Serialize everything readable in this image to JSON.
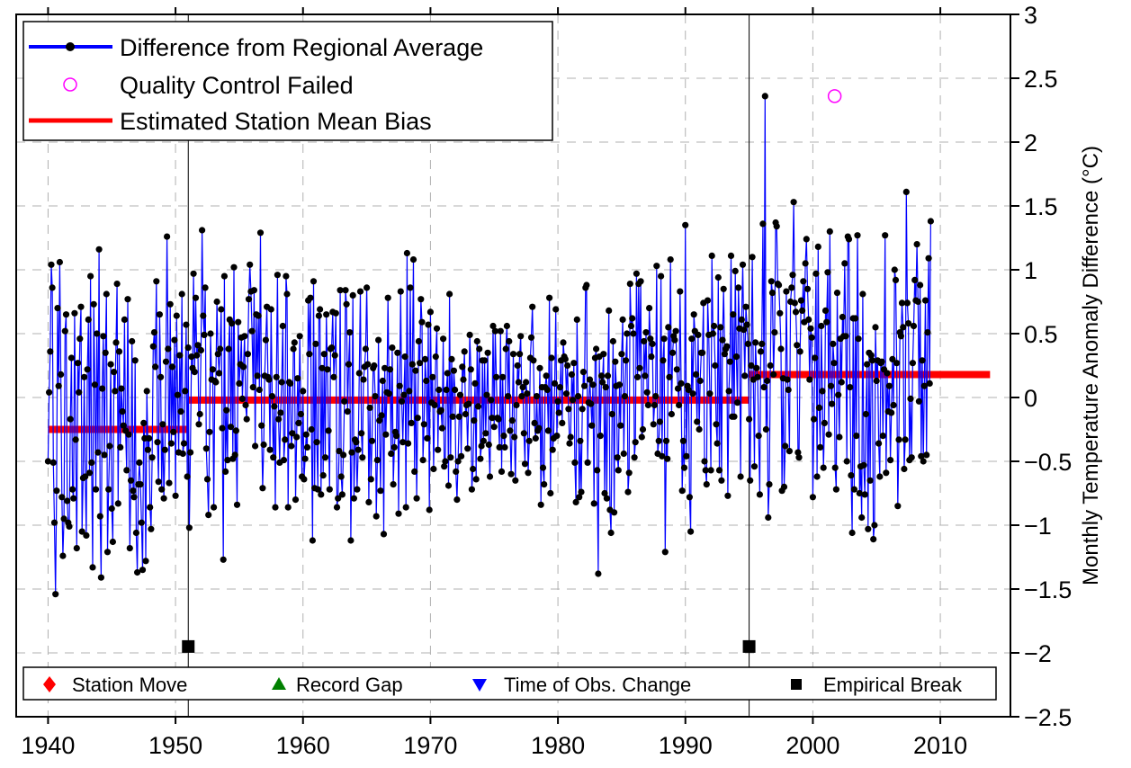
{
  "chart_data": {
    "type": "line",
    "title": "",
    "xlabel": "",
    "ylabel": "Monthly Temperature Anomaly Difference (°C)",
    "xlim": [
      1937.5,
      2015.5
    ],
    "ylim": [
      -2.5,
      3
    ],
    "x_ticks": [
      1940,
      1950,
      1960,
      1970,
      1980,
      1990,
      2000,
      2010
    ],
    "y_ticks": [
      -2.5,
      -2,
      -1.5,
      -1,
      -0.5,
      0,
      0.5,
      1,
      1.5,
      2,
      2.5,
      3
    ],
    "y_tick_labels": [
      "−2.5",
      "−2",
      "−1.5",
      "−1",
      "−0.5",
      "0",
      "0.5",
      "1",
      "1.5",
      "2",
      "2.5",
      "3"
    ],
    "grid": true,
    "y_axis_side": "right",
    "series": [
      {
        "name": "Difference from Regional Average",
        "color": "#0000ff",
        "marker_color": "#000000",
        "x_start": 1940.0,
        "x_step": 0.08333,
        "values": [
          -0.5,
          0.04,
          0.36,
          1.04,
          0.86,
          -0.51,
          -0.98,
          -1.54,
          -0.73,
          0.7,
          0.09,
          1.06,
          0.18,
          -0.78,
          -1.24,
          -0.95,
          0.52,
          0.65,
          -0.81,
          -0.98,
          -1.01,
          -0.17,
          0.31,
          -0.72,
          -0.79,
          0.66,
          -0.33,
          -1.18,
          0.27,
          0.04,
          0.46,
          0.71,
          -1.05,
          -0.63,
          0.16,
          -0.62,
          -1.08,
          0.22,
          0.61,
          -0.59,
          0.95,
          -0.51,
          -1.33,
          0.73,
          0.1,
          -0.72,
          0.5,
          -0.43,
          1.16,
          -0.93,
          -1.41,
          0.07,
          0.48,
          -0.45,
          0.35,
          0.81,
          -1.21,
          -0.72,
          -0.38,
          0.26,
          -0.87,
          -1.13,
          0.2,
          0.05,
          0.43,
          0.89,
          -0.83,
          0.36,
          -0.39,
          0.07,
          -0.11,
          -0.22,
          0.61,
          -0.26,
          -0.57,
          0.77,
          -0.29,
          -1.18,
          -0.65,
          0.44,
          -0.73,
          -0.78,
          0.29,
          -1.06,
          -1.37,
          -0.68,
          -0.51,
          -0.68,
          -0.98,
          -1.35,
          -0.2,
          -0.32,
          -1.28,
          0.05,
          -0.41,
          -0.32,
          -0.86,
          -1.03,
          -0.47,
          0.4,
          0.51,
          0.24,
          0.91,
          -0.35,
          -0.66,
          0.65,
          0.16,
          -0.72,
          -0.21,
          -0.79,
          -0.41,
          0.28,
          1.26,
          0.38,
          -0.67,
          0.73,
          -0.36,
          0.24,
          -0.27,
          0.45,
          -0.77,
          0.64,
          0.02,
          -0.43,
          0.33,
          -0.11,
          0.81,
          -0.44,
          -0.36,
          0.05,
          0.57,
          -0.62,
          0.39,
          -1.02,
          -0.43,
          0.32,
          0.23,
          0.97,
          0.2,
          0.78,
          0.33,
          0.41,
          -0.21,
          -0.13,
          0.37,
          1.31,
          0.64,
          0.49,
          0.86,
          -0.4,
          -0.64,
          -0.92,
          -0.27,
          0.5,
          0.14,
          0.22,
          -0.86,
          0.13,
          0.12,
          0.75,
          0.34,
          0.19,
          0.38,
          0.69,
          -0.24,
          -1.27,
          0.95,
          -0.58,
          -0.1,
          -0.49,
          0.38,
          0.61,
          -0.23,
          0.58,
          -0.48,
          1.02,
          -0.45,
          -0.26,
          -0.84,
          0.59,
          0.11,
          0.26,
          0.47,
          -0.01,
          0.24,
          0.48,
          -0.06,
          -0.17,
          0.34,
          0.77,
          1.04,
          0.83,
          0.52,
          0.08,
          0.84,
          -0.38,
          0.65,
          0.17,
          0.64,
          0.06,
          1.29,
          -0.22,
          -0.71,
          -0.37,
          0.17,
          0.45,
          0.71,
          0.16,
          0.14,
          -0.41,
          0.69,
          0.01,
          -0.47,
          -0.07,
          -0.86,
          0.16,
          0.96,
          -0.17,
          -0.51,
          -0.12,
          0.12,
          0.56,
          -0.49,
          -0.33,
          0.95,
          0.81,
          -0.86,
          0.12,
          0.11,
          -0.38,
          -0.28,
          0.38,
          0.43,
          -0.8,
          -0.31,
          0.15,
          -0.2,
          0.48,
          -0.13,
          -0.62,
          0.05,
          -0.64,
          -0.48,
          -0.29,
          -0.39,
          0.76,
          0.34,
          0.78,
          -0.25,
          -1.12,
          0.91,
          -0.71,
          0.42,
          -0.35,
          -0.72,
          0.64,
          0.69,
          -0.76,
          0.23,
          -0.61,
          0.34,
          -0.47,
          0.65,
          0.22,
          -0.26,
          -0.72,
          0.38,
          0.39,
          0.67,
          0.16,
          0.33,
          0.66,
          -0.86,
          -0.79,
          -0.42,
          0.84,
          -0.62,
          -0.76,
          -0.45,
          -0.03,
          0.84,
          0.73,
          -0.11,
          0.26,
          0.51,
          -1.12,
          -0.43,
          0.8,
          -0.79,
          -0.33,
          -0.35,
          -0.72,
          -0.41,
          0.19,
          0.83,
          -0.28,
          -0.47,
          0.14,
          0.24,
          0.38,
          0.86,
          0.26,
          -0.82,
          -0.08,
          -0.64,
          -0.34,
          0.23,
          0.25,
          0.01,
          -0.93,
          -0.49,
          0.45,
          -0.18,
          -0.73,
          -0.14,
          0.13,
          -1.07,
          0.23,
          -0.29,
          0.04,
          0.78,
          0.03,
          0.22,
          -0.44,
          0.39,
          -0.68,
          -0.39,
          -0.27,
          -0.3,
          0.35,
          -0.91,
          0.09,
          0.83,
          -0.03,
          -0.35,
          0.02,
          0.32,
          -0.86,
          1.13,
          -0.36,
          0.05,
          0.86,
          -0.2,
          0.26,
          1.08,
          -0.58,
          0.21,
          -0.79,
          -0.16,
          0.44,
          0.27,
          0.77,
          0.59,
          -0.49,
          -0.21,
          0.3,
          0.13,
          -0.32,
          0.57,
          -0.88,
          0.67,
          -0.04,
          0.16,
          -0.56,
          -0.06,
          0.32,
          0.54,
          -0.41,
          0.06,
          -0.11,
          -0.1,
          -0.24,
          0.46,
          -0.54,
          -0.5,
          0.06,
          0.19,
          -0.69,
          0.81,
          -0.47,
          0.3,
          -0.15,
          0.21,
          0.06,
          -0.58,
          -0.8,
          -0.5,
          -0.15,
          0.02,
          -0.46,
          0.24,
          0.14,
          0.36,
          -0.13,
          -0.06,
          -0.4,
          -0.05,
          0.49,
          0.22,
          -0.72,
          -0.56,
          -0.18,
          0.11,
          -0.64,
          0.44,
          -0.07,
          0.38,
          -0.48,
          -0.38,
          0.29,
          -0.34,
          0.29,
          -0.28,
          0.02,
          0.35,
          -0.37,
          -0.62,
          -0.02,
          -0.16,
          0.56,
          -0.23,
          0.52,
          0.16,
          -0.16,
          -0.17,
          -0.39,
          0.52,
          -0.58,
          0.16,
          -0.3,
          -0.39,
          0.38,
          0.56,
          0.01,
          0.44,
          -0.26,
          -0.6,
          -0.18,
          0.34,
          -0.31,
          -0.65,
          -0.06,
          0.25,
          0.12,
          0.34,
          0.48,
          0.01,
          0.08,
          -0.28,
          -0.52,
          0.12,
          0.03,
          -0.59,
          -0.34,
          0.31,
          0.47,
          0.71,
          0.29,
          -0.2,
          -0.32,
          0.01,
          -0.26,
          -0.24,
          0.23,
          -0.84,
          0.08,
          -0.55,
          -0.68,
          0.08,
          0.17,
          0.06,
          -0.26,
          0.78,
          -0.75,
          0.31,
          -0.41,
          -0.32,
          0.11,
          0.69,
          -0.3,
          -0.03,
          -0.12,
          0.08,
          0.29,
          -0.2,
          0.43,
          0.32,
          0.3,
          0.03,
          0.25,
          -0.09,
          -0.36,
          -0.31,
          0.18,
          -0.02,
          0.27,
          -0.51,
          -0.82,
          0.61,
          0.01,
          -0.78,
          -0.34,
          -0.74,
          -0.09,
          0.2,
          0.09,
          0.86,
          0.88,
          -0.51,
          -0.04,
          0.14,
          -0.05,
          -0.22,
          0.1,
          -0.83,
          0.31,
          0.38,
          -0.57,
          -1.38,
          0.32,
          -0.3,
          0.17,
          0.12,
          0.34,
          -0.75,
          0.08,
          -0.79,
          0.17,
          0.68,
          -0.88,
          -1.06,
          -0.13,
          0.44,
          -0.9,
          0.28,
          0.09,
          -0.47,
          -0.57,
          0.1,
          -0.22,
          0.34,
          0.61,
          -0.44,
          0.01,
          0.29,
          0.5,
          -0.74,
          -0.59,
          0.89,
          0.56,
          0.62,
          0.5,
          -0.47,
          -0.35,
          0.97,
          0.16,
          0.89,
          0.23,
          0.91,
          -0.31,
          -0.25,
          0.44,
          0.17,
          0.51,
          0.04,
          -0.06,
          0.7,
          0.46,
          0.32,
          0.42,
          -0.21,
          -0.06,
          0.01,
          1.03,
          -0.44,
          -0.34,
          -0.19,
          0.95,
          -0.46,
          0.29,
          0.46,
          -1.21,
          -0.34,
          -0.48,
          0.55,
          0.16,
          1.08,
          -0.13,
          0.35,
          0.48,
          0.45,
          0.52,
          0.22,
          0.07,
          -0.06,
          0.83,
          0.11,
          -0.73,
          -0.34,
          -0.55,
          1.35,
          -0.46,
          0.09,
          0.06,
          -0.78,
          -1.05,
          0.46,
          0.03,
          0.65,
          0.52,
          0.18,
          -0.19,
          0.49,
          -0.25,
          0.13,
          0.35,
          0.35,
          0.74,
          -0.5,
          -0.57,
          -0.68,
          0.76,
          0.49,
          0.03,
          -0.57,
          1.11,
          0.5,
          0.56,
          0.25,
          -0.21,
          -0.36,
          0.94,
          -0.57,
          0.55,
          -0.65,
          0.45,
          0.85,
          0.34,
          0.38,
          0.4,
          -0.77,
          0.05,
          0.28,
          1.11,
          -0.15,
          0.65,
          -0.15,
          0.99,
          0.32,
          -0.04,
          0.86,
          0.54,
          -0.62,
          0.61,
          1.04,
          0.53,
          0.17,
          0.71,
          0.57,
          0.42,
          -0.17,
          -0.65,
          0.25,
          1.1,
          0.14,
          -0.54,
          0.43,
          0.23,
          0.16,
          -0.3,
          -0.76,
          0.36,
          0.42,
          1.36,
          0.08,
          2.36,
          -0.25,
          0.13,
          -0.94,
          -0.68,
          0.25,
          0.91,
          0.82,
          0.18,
          0.51,
          1.37,
          1.34,
          0.89,
          0.88,
          0.66,
          0.38,
          -0.73,
          0.15,
          -0.7,
          -0.38,
          0.83,
          0.14,
          0.06,
          -0.42,
          0.75,
          0.86,
          0.96,
          1.53,
          0.74,
          0.67,
          0.41,
          -0.43,
          -0.47,
          0.36,
          0.76,
          0.68,
          0.91,
          0.59,
          1.05,
          1.24,
          0.85,
          0.61,
          0.14,
          0.54,
          0.47,
          -0.78,
          -0.17,
          0.31,
          0.97,
          -0.62,
          1.18,
          -0.08,
          -0.39,
          0.56,
          0.05,
          -0.55,
          -0.2,
          0.68,
          0.59,
          0.98,
          -0.29,
          1.3,
          0.09,
          -0.05,
          0.42,
          0.27,
          -0.55,
          -0.72,
          0.82,
          0.02,
          -0.31,
          0.46,
          0.12,
          0.63,
          0.48,
          1.05,
          0.48,
          -0.5,
          1.26,
          1.24,
          0.08,
          -0.61,
          -1.06,
          0.62,
          -0.72,
          0.62,
          -0.3,
          1.27,
          0.46,
          -0.75,
          -0.54,
          -0.94,
          0.81,
          -0.53,
          -0.76,
          -0.13,
          0.26,
          -1.03,
          0.35,
          -0.65,
          0.33,
          0.29,
          -1.11,
          -1.0,
          0.55,
          0.13,
          0.29,
          -0.36,
          -0.62,
          0.27,
          0.28,
          -0.3,
          0.22,
          1.27,
          -0.59,
          0.19,
          -0.11,
          0.09,
          -0.49,
          -0.12,
          0.3,
          -0.06,
          1.0,
          0.92,
          0.27,
          -0.85,
          -0.33,
          0.51,
          0.48,
          0.74,
          0.55,
          -0.56,
          -0.33,
          1.61,
          0.74,
          0.58,
          -0.49,
          -0.01,
          -0.47,
          0.27,
          0.56,
          0.92,
          0.76,
          1.2,
          0.75,
          -0.03,
          0.88,
          -0.46,
          0.29,
          -0.5,
          0.09,
          0.76,
          -0.45,
          0.51,
          1.09,
          0.11,
          1.38
        ]
      }
    ],
    "qc_failed": {
      "name": "Quality Control Failed",
      "color": "#ff00ff",
      "points": [
        {
          "x": 2001.71,
          "y": 2.36
        }
      ]
    },
    "bias_segments": {
      "name": "Estimated Station Mean Bias",
      "color": "#ff0000",
      "segments": [
        {
          "x0": 1940.0,
          "x1": 1951.0,
          "y": -0.25
        },
        {
          "x0": 1951.0,
          "x1": 1995.0,
          "y": -0.02
        },
        {
          "x0": 1995.0,
          "x1": 2013.9,
          "y": 0.18
        }
      ]
    },
    "breaks": {
      "name": "Empirical Break",
      "x": [
        1951.0,
        1995.0
      ],
      "y": -1.95
    },
    "legend_top": {
      "position": "top-left",
      "entries": [
        {
          "label": "Difference from Regional Average",
          "kind": "line-marker",
          "color": "#0000ff"
        },
        {
          "label": "Quality Control Failed",
          "kind": "open-circle",
          "color": "#ff00ff"
        },
        {
          "label": "Estimated Station Mean Bias",
          "kind": "thick-line",
          "color": "#ff0000"
        }
      ]
    },
    "legend_bottom": {
      "position": "bottom",
      "entries": [
        {
          "label": "Station Move",
          "symbol": "diamond",
          "color": "#ff0000"
        },
        {
          "label": "Record Gap",
          "symbol": "triangle-up",
          "color": "#008000"
        },
        {
          "label": "Time of Obs. Change",
          "symbol": "triangle-down",
          "color": "#0000ff"
        },
        {
          "label": "Empirical Break",
          "symbol": "square",
          "color": "#000000"
        }
      ]
    }
  }
}
